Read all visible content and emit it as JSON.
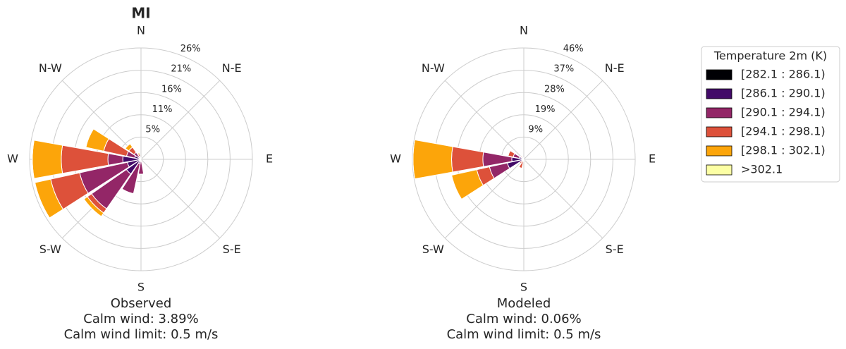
{
  "chart_data": [
    {
      "type": "windrose",
      "title": "MI",
      "xlabel": [
        "Observed",
        "Calm wind: 3.89%",
        "Calm wind limit: 0.5 m/s"
      ],
      "categories": [
        "N",
        null,
        "N-E",
        null,
        "E",
        null,
        "S-E",
        null,
        "S",
        null,
        "S-W",
        null,
        "W",
        null,
        "N-W",
        null
      ],
      "legend_title": "Temperature 2m (K)",
      "series": [
        {
          "name": "[282.1 : 286.1)",
          "color": "#000004",
          "values": [
            0,
            0,
            0,
            0,
            0,
            0,
            0,
            0,
            0,
            0,
            0.2,
            0.3,
            0.3,
            0,
            0,
            0
          ]
        },
        {
          "name": "[286.1 : 290.1)",
          "color": "#420a68",
          "values": [
            0.1,
            0,
            0,
            0,
            0,
            0,
            0,
            0,
            0.5,
            1,
            4,
            3,
            4,
            1.5,
            0.5,
            0.3
          ]
        },
        {
          "name": "[290.1 : 294.1)",
          "color": "#932667",
          "values": [
            0.2,
            0,
            0,
            0,
            0,
            0,
            0,
            0,
            3,
            7.3,
            10,
            11.5,
            3.5,
            2,
            1.5,
            0.5
          ]
        },
        {
          "name": "[294.1 : 298.1)",
          "color": "#dd513a",
          "values": [
            0,
            0,
            0,
            0,
            0,
            0,
            0,
            0,
            0,
            0,
            1.2,
            7,
            11,
            5.5,
            1.5,
            0.5
          ]
        },
        {
          "name": "[298.1 : 302.1)",
          "color": "#fca50a",
          "values": [
            0,
            0,
            0,
            0,
            0,
            0,
            0,
            0,
            0,
            0,
            1,
            3.8,
            6.8,
            4.3,
            1,
            0.3
          ]
        },
        {
          "name": ">302.1",
          "color": "#fcffa4",
          "values": [
            0,
            0,
            0,
            0,
            0,
            0,
            0,
            0,
            0,
            0,
            0,
            0,
            0,
            0,
            0,
            0
          ]
        }
      ],
      "ylim": [
        0,
        26.25
      ],
      "yticks": [
        {
          "value": 5.25,
          "label": "5%"
        },
        {
          "value": 10.5,
          "label": "11%"
        },
        {
          "value": 15.75,
          "label": "16%"
        },
        {
          "value": 21,
          "label": "21%"
        },
        {
          "value": 26.25,
          "label": "26%"
        }
      ],
      "grid": true
    },
    {
      "type": "windrose",
      "xlabel": [
        "Modeled",
        "Calm wind: 0.06%",
        "Calm wind limit: 0.5 m/s"
      ],
      "categories": [
        "N",
        null,
        "N-E",
        null,
        "E",
        null,
        "S-E",
        null,
        "S",
        null,
        "S-W",
        null,
        "W",
        null,
        "N-W",
        null
      ],
      "series": [
        {
          "color": "#000004",
          "values": [
            0,
            0,
            0,
            0,
            0,
            0,
            0,
            0,
            0,
            0,
            0,
            0,
            0,
            0,
            0,
            0
          ]
        },
        {
          "color": "#420a68",
          "values": [
            0,
            0,
            0,
            0,
            0,
            0,
            0,
            0,
            0,
            0.3,
            0.5,
            7,
            5,
            2,
            0.5,
            0.3
          ]
        },
        {
          "color": "#932667",
          "values": [
            0,
            0,
            0,
            0,
            0,
            0,
            0,
            0,
            0,
            0.5,
            0.8,
            7.6,
            12,
            2.5,
            0.8,
            0.3
          ]
        },
        {
          "color": "#dd513a",
          "values": [
            0,
            0,
            0,
            0,
            0,
            0,
            0,
            0.5,
            0.5,
            3,
            0.8,
            5.4,
            13,
            2.2,
            0.5,
            0.2
          ]
        },
        {
          "color": "#fca50a",
          "values": [
            0,
            0,
            0,
            0,
            0,
            0,
            0,
            0,
            0,
            0,
            0,
            10.7,
            16,
            0,
            0,
            0
          ]
        },
        {
          "color": "#fcffa4",
          "values": [
            0,
            0,
            0,
            0,
            0,
            0,
            0,
            0,
            0,
            0,
            0,
            0,
            0,
            0,
            0,
            0
          ]
        }
      ],
      "ylim": [
        0,
        46.25
      ],
      "yticks": [
        {
          "value": 9.25,
          "label": "9%"
        },
        {
          "value": 18.5,
          "label": "19%"
        },
        {
          "value": 27.75,
          "label": "28%"
        },
        {
          "value": 37,
          "label": "37%"
        },
        {
          "value": 46.25,
          "label": "46%"
        }
      ],
      "grid": true
    }
  ]
}
